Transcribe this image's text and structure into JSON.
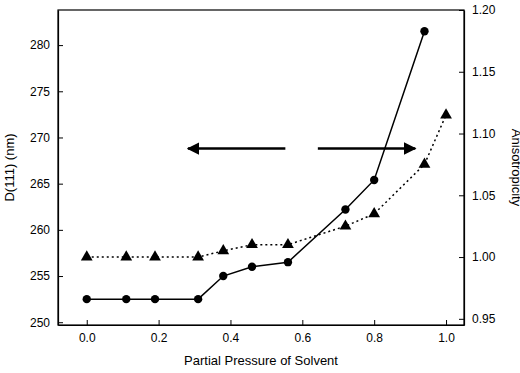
{
  "chart_data": {
    "type": "line",
    "x_label": "Partial Pressure of Solvent",
    "y_label": "D(111) (nm)",
    "y2_label": "Anisotropicity",
    "xlim": [
      -0.08,
      1.05
    ],
    "xticks": [
      {
        "value": 0,
        "label": "0.0"
      },
      0.2,
      0.4,
      0.6,
      0.8,
      {
        "value": 1,
        "label": "1.0"
      }
    ],
    "ylim": [
      249.7,
      283.8
    ],
    "yticks": [
      250,
      255,
      260,
      265,
      270,
      275,
      280
    ],
    "y2lim": [
      0.945,
      1.2
    ],
    "y2ticks": [
      0.95,
      {
        "value": 1,
        "label": "1.00"
      },
      1.05,
      {
        "value": 1.1,
        "label": "1.10"
      },
      1.15,
      {
        "value": 1.2,
        "label": "1.20"
      }
    ],
    "series": [
      {
        "color": "#000000",
        "marker": "circle",
        "line_style": "solid",
        "x": [
          0,
          0.11,
          0.19,
          0.31,
          0.38,
          0.46,
          0.56,
          0.72,
          0.8,
          0.94
        ],
        "values": [
          252.5,
          252.5,
          252.5,
          252.5,
          255,
          256,
          256.5,
          262.2,
          265.4,
          281.5
        ]
      },
      {
        "color": "#000000",
        "marker": "triangle",
        "line_style": "dotted",
        "axis": "y2",
        "x": [
          0,
          0.11,
          0.19,
          0.31,
          0.38,
          0.46,
          0.56,
          0.72,
          0.8,
          0.94,
          1
        ],
        "values": [
          1,
          1,
          1,
          1,
          1.005,
          1.01,
          1.01,
          1.025,
          1.035,
          1.075,
          1.115
        ]
      }
    ]
  }
}
